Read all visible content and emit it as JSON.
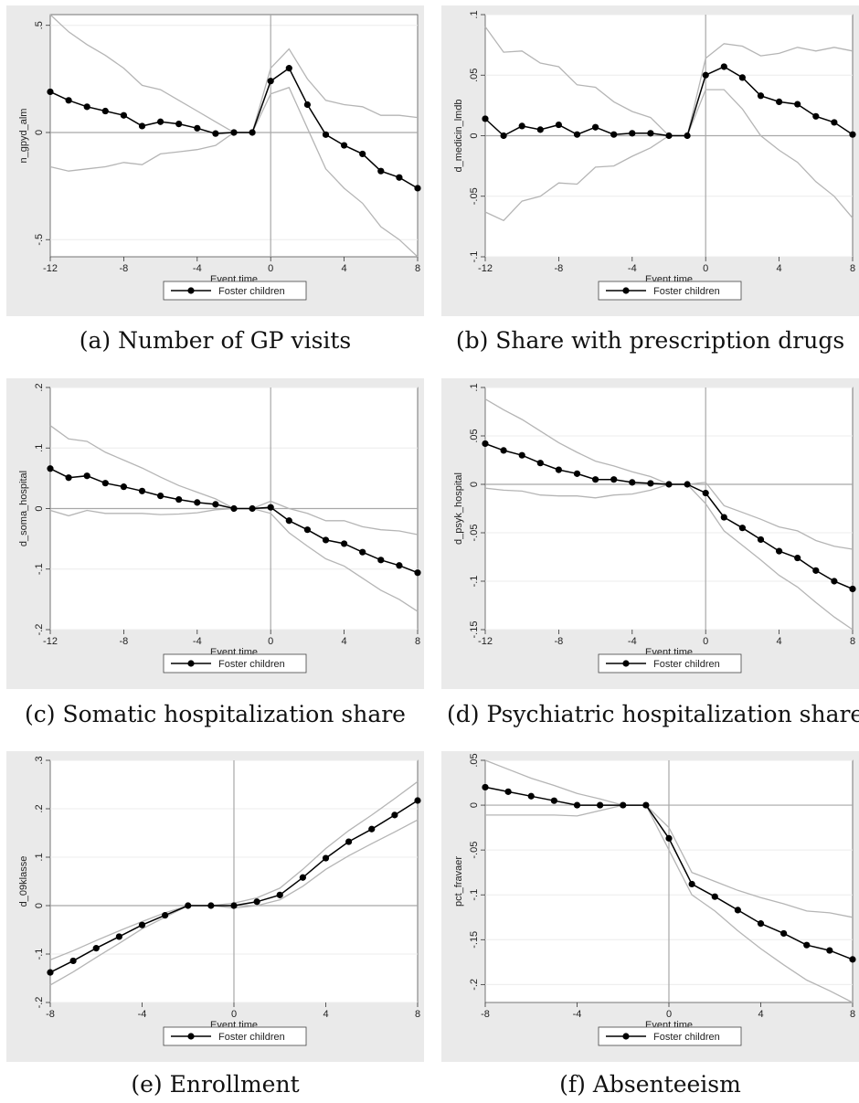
{
  "xlabel": "Event time",
  "legend_label": "Foster children",
  "colors": {
    "background": "#eaeaea",
    "plot": "#ffffff",
    "estimate": "#000000",
    "ci": "#b5b5b5",
    "reference": "#a8a8a8"
  },
  "chart_data": [
    {
      "type": "line",
      "caption": "(a) Number of GP visits",
      "ylabel": "n_gpyd_alm",
      "xlabel": "Event time",
      "x": [
        -12,
        -11,
        -10,
        -9,
        -8,
        -7,
        -6,
        -5,
        -4,
        -3,
        -2,
        -1,
        0,
        1,
        2,
        3,
        4,
        5,
        6,
        7,
        8
      ],
      "xlim": [
        -12,
        8
      ],
      "xticks": [
        -12,
        -8,
        -4,
        0,
        4,
        8
      ],
      "xtick_labels": [
        "-12",
        "-8",
        "-4",
        "0",
        "4",
        "8"
      ],
      "ylim": [
        -0.58,
        0.55
      ],
      "yticks": [
        -0.5,
        0,
        0.5
      ],
      "ytick_labels": [
        "-.5",
        "0",
        ".5"
      ],
      "grid": "horizontal",
      "legend": "bottom",
      "series": [
        {
          "name": "Foster children",
          "values": [
            0.19,
            0.15,
            0.12,
            0.1,
            0.08,
            0.03,
            0.05,
            0.04,
            0.02,
            -0.005,
            0,
            0,
            0.24,
            0.3,
            0.13,
            -0.01,
            -0.06,
            -0.1,
            -0.18,
            -0.21,
            -0.26
          ]
        },
        {
          "values": [
            0.55,
            0.47,
            0.41,
            0.36,
            0.3,
            0.22,
            0.2,
            0.15,
            0.1,
            0.05,
            0,
            0,
            0.3,
            0.39,
            0.25,
            0.15,
            0.13,
            0.12,
            0.08,
            0.08,
            0.07
          ]
        },
        {
          "values": [
            -0.16,
            -0.18,
            -0.17,
            -0.16,
            -0.14,
            -0.15,
            -0.1,
            -0.09,
            -0.08,
            -0.06,
            0,
            0,
            0.18,
            0.21,
            0.02,
            -0.17,
            -0.26,
            -0.33,
            -0.44,
            -0.5,
            -0.58
          ]
        }
      ]
    },
    {
      "type": "line",
      "caption": "(b) Share with prescription drugs",
      "ylabel": "d_medicin_lmdb",
      "xlabel": "Event time",
      "x": [
        -12,
        -11,
        -10,
        -9,
        -8,
        -7,
        -6,
        -5,
        -4,
        -3,
        -2,
        -1,
        0,
        1,
        2,
        3,
        4,
        5,
        6,
        7,
        8
      ],
      "xlim": [
        -12,
        8
      ],
      "xticks": [
        -12,
        -8,
        -4,
        0,
        4,
        8
      ],
      "xtick_labels": [
        "-12",
        "-8",
        "-4",
        "0",
        "4",
        "8"
      ],
      "ylim": [
        -0.1,
        0.1
      ],
      "yticks": [
        -0.1,
        -0.05,
        0,
        0.05,
        0.1
      ],
      "ytick_labels": [
        "-.1",
        "-.05",
        "0",
        ".05",
        ".1"
      ],
      "grid": "horizontal",
      "legend": "bottom",
      "series": [
        {
          "name": "Foster children",
          "values": [
            0.014,
            0,
            0.008,
            0.005,
            0.009,
            0.001,
            0.007,
            0.001,
            0.002,
            0.002,
            0,
            0,
            0.05,
            0.057,
            0.048,
            0.033,
            0.028,
            0.026,
            0.016,
            0.011,
            0.001
          ]
        },
        {
          "values": [
            0.09,
            0.069,
            0.07,
            0.06,
            0.057,
            0.042,
            0.04,
            0.028,
            0.02,
            0.015,
            0,
            0,
            0.064,
            0.076,
            0.074,
            0.066,
            0.068,
            0.073,
            0.07,
            0.073,
            0.07
          ]
        },
        {
          "values": [
            -0.063,
            -0.07,
            -0.054,
            -0.05,
            -0.039,
            -0.04,
            -0.026,
            -0.025,
            -0.017,
            -0.01,
            0,
            0,
            0.038,
            0.038,
            0.022,
            0,
            -0.012,
            -0.022,
            -0.038,
            -0.05,
            -0.068
          ]
        }
      ]
    },
    {
      "type": "line",
      "caption": "(c) Somatic hospitalization share",
      "ylabel": "d_soma_hospital",
      "xlabel": "Event time",
      "x": [
        -12,
        -11,
        -10,
        -9,
        -8,
        -7,
        -6,
        -5,
        -4,
        -3,
        -2,
        -1,
        0,
        1,
        2,
        3,
        4,
        5,
        6,
        7,
        8
      ],
      "xlim": [
        -12,
        8
      ],
      "xticks": [
        -12,
        -8,
        -4,
        0,
        4,
        8
      ],
      "xtick_labels": [
        "-12",
        "-8",
        "-4",
        "0",
        "4",
        "8"
      ],
      "ylim": [
        -0.2,
        0.2
      ],
      "yticks": [
        -0.2,
        -0.1,
        0,
        0.1,
        0.2
      ],
      "ytick_labels": [
        "-.2",
        "-.1",
        "0",
        ".1",
        ".2"
      ],
      "grid": "horizontal",
      "legend": "bottom",
      "series": [
        {
          "name": "Foster children",
          "values": [
            0.066,
            0.051,
            0.054,
            0.042,
            0.036,
            0.029,
            0.021,
            0.015,
            0.01,
            0.007,
            0,
            0,
            0.002,
            -0.02,
            -0.035,
            -0.052,
            -0.058,
            -0.072,
            -0.085,
            -0.094,
            -0.106
          ]
        },
        {
          "values": [
            0.137,
            0.115,
            0.111,
            0.093,
            0.08,
            0.067,
            0.052,
            0.038,
            0.027,
            0.016,
            0,
            0,
            0.012,
            0,
            -0.008,
            -0.02,
            -0.02,
            -0.03,
            -0.035,
            -0.037,
            -0.043
          ]
        },
        {
          "values": [
            -0.003,
            -0.012,
            -0.003,
            -0.008,
            -0.008,
            -0.008,
            -0.01,
            -0.009,
            -0.007,
            -0.002,
            0,
            0,
            -0.008,
            -0.04,
            -0.062,
            -0.083,
            -0.095,
            -0.115,
            -0.135,
            -0.15,
            -0.17
          ]
        }
      ]
    },
    {
      "type": "line",
      "caption": "(d) Psychiatric hospitalization share",
      "ylabel": "d_psyk_hospital",
      "xlabel": "Event time",
      "x": [
        -12,
        -11,
        -10,
        -9,
        -8,
        -7,
        -6,
        -5,
        -4,
        -3,
        -2,
        -1,
        0,
        1,
        2,
        3,
        4,
        5,
        6,
        7,
        8
      ],
      "xlim": [
        -12,
        8
      ],
      "xticks": [
        -12,
        -8,
        -4,
        0,
        4,
        8
      ],
      "xtick_labels": [
        "-12",
        "-8",
        "-4",
        "0",
        "4",
        "8"
      ],
      "ylim": [
        -0.15,
        0.1
      ],
      "yticks": [
        -0.15,
        -0.1,
        -0.05,
        0,
        0.05,
        0.1
      ],
      "ytick_labels": [
        "-.15",
        "-.1",
        "-.05",
        "0",
        ".05",
        ".1"
      ],
      "grid": "horizontal",
      "legend": "bottom",
      "series": [
        {
          "name": "Foster children",
          "values": [
            0.042,
            0.035,
            0.03,
            0.022,
            0.015,
            0.011,
            0.005,
            0.005,
            0.002,
            0.001,
            0,
            0,
            -0.009,
            -0.034,
            -0.045,
            -0.057,
            -0.069,
            -0.076,
            -0.089,
            -0.1,
            -0.108
          ]
        },
        {
          "values": [
            0.088,
            0.077,
            0.067,
            0.055,
            0.043,
            0.033,
            0.024,
            0.019,
            0.013,
            0.008,
            0,
            0,
            0.002,
            -0.022,
            -0.029,
            -0.036,
            -0.044,
            -0.048,
            -0.058,
            -0.064,
            -0.067
          ]
        },
        {
          "values": [
            -0.004,
            -0.006,
            -0.007,
            -0.011,
            -0.012,
            -0.012,
            -0.014,
            -0.011,
            -0.01,
            -0.006,
            0,
            0,
            -0.02,
            -0.048,
            -0.063,
            -0.078,
            -0.094,
            -0.106,
            -0.122,
            -0.137,
            -0.15
          ]
        }
      ]
    },
    {
      "type": "line",
      "caption": "(e) Enrollment",
      "ylabel": "d_09klasse",
      "xlabel": "Event time",
      "x": [
        -8,
        -7,
        -6,
        -5,
        -4,
        -3,
        -2,
        -1,
        0,
        1,
        2,
        3,
        4,
        5,
        6,
        7,
        8
      ],
      "xlim": [
        -8,
        8
      ],
      "xticks": [
        -8,
        -4,
        0,
        4,
        8
      ],
      "xtick_labels": [
        "-8",
        "-4",
        "0",
        "4",
        "8"
      ],
      "ylim": [
        -0.2,
        0.3
      ],
      "yticks": [
        -0.2,
        -0.1,
        0,
        0.1,
        0.2,
        0.3
      ],
      "ytick_labels": [
        "-.2",
        "-.1",
        "0",
        ".1",
        ".2",
        ".3"
      ],
      "grid": "horizontal",
      "legend": "bottom",
      "series": [
        {
          "name": "Foster children",
          "values": [
            -0.138,
            -0.114,
            -0.088,
            -0.064,
            -0.04,
            -0.02,
            0,
            0,
            0,
            0.008,
            0.022,
            0.058,
            0.098,
            0.132,
            0.158,
            0.187,
            0.217
          ]
        },
        {
          "values": [
            -0.112,
            -0.093,
            -0.072,
            -0.052,
            -0.033,
            -0.015,
            0,
            0,
            0.005,
            0.016,
            0.036,
            0.075,
            0.118,
            0.155,
            0.187,
            0.221,
            0.256
          ]
        },
        {
          "values": [
            -0.164,
            -0.137,
            -0.107,
            -0.078,
            -0.048,
            -0.024,
            0,
            0,
            -0.005,
            0,
            0.012,
            0.04,
            0.075,
            0.103,
            0.128,
            0.152,
            0.177
          ]
        }
      ]
    },
    {
      "type": "line",
      "caption": "(f) Absenteeism",
      "ylabel": "pct_fravaer",
      "xlabel": "Event time",
      "x": [
        -8,
        -7,
        -6,
        -5,
        -4,
        -3,
        -2,
        -1,
        0,
        1,
        2,
        3,
        4,
        5,
        6,
        7,
        8
      ],
      "xlim": [
        -8,
        8
      ],
      "xticks": [
        -8,
        -4,
        0,
        4,
        8
      ],
      "xtick_labels": [
        "-8",
        "-4",
        "0",
        "4",
        "8"
      ],
      "ylim": [
        -0.22,
        0.05
      ],
      "yticks": [
        -0.2,
        -0.15,
        -0.1,
        -0.05,
        0,
        0.05
      ],
      "ytick_labels": [
        "-.2",
        "-.15",
        "-.1",
        "-.05",
        "0",
        ".05"
      ],
      "grid": "horizontal",
      "legend": "bottom",
      "series": [
        {
          "name": "Foster children",
          "values": [
            0.02,
            0.015,
            0.01,
            0.005,
            0,
            0,
            0,
            0,
            -0.037,
            -0.088,
            -0.102,
            -0.117,
            -0.132,
            -0.143,
            -0.156,
            -0.162,
            -0.172
          ]
        },
        {
          "values": [
            0.05,
            0.04,
            0.03,
            0.022,
            0.013,
            0.007,
            0,
            0,
            -0.025,
            -0.075,
            -0.085,
            -0.095,
            -0.103,
            -0.11,
            -0.118,
            -0.12,
            -0.125
          ]
        },
        {
          "values": [
            -0.011,
            -0.011,
            -0.011,
            -0.011,
            -0.012,
            -0.006,
            0,
            0,
            -0.05,
            -0.1,
            -0.118,
            -0.14,
            -0.16,
            -0.178,
            -0.195,
            -0.207,
            -0.22
          ]
        }
      ]
    }
  ]
}
